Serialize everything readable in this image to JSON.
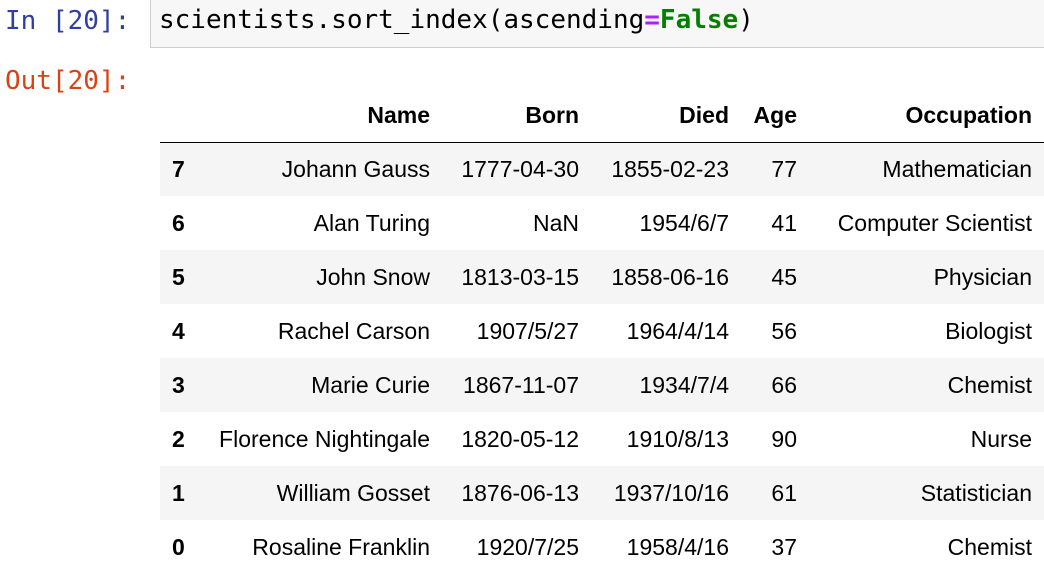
{
  "cell_in": {
    "prompt": "In [20]:",
    "code_object": "scientists.sort_index(ascending",
    "code_op": "=",
    "code_kw": "False",
    "code_close": ")"
  },
  "cell_out": {
    "prompt": "Out[20]:"
  },
  "table": {
    "columns": [
      "",
      "Name",
      "Born",
      "Died",
      "Age",
      "Occupation"
    ],
    "rows": [
      {
        "index": "7",
        "name": "Johann Gauss",
        "born": "1777-04-30",
        "died": "1855-02-23",
        "age": "77",
        "occupation": "Mathematician"
      },
      {
        "index": "6",
        "name": "Alan Turing",
        "born": "NaN",
        "died": "1954/6/7",
        "age": "41",
        "occupation": "Computer Scientist"
      },
      {
        "index": "5",
        "name": "John Snow",
        "born": "1813-03-15",
        "died": "1858-06-16",
        "age": "45",
        "occupation": "Physician"
      },
      {
        "index": "4",
        "name": "Rachel Carson",
        "born": "1907/5/27",
        "died": "1964/4/14",
        "age": "56",
        "occupation": "Biologist"
      },
      {
        "index": "3",
        "name": "Marie Curie",
        "born": "1867-11-07",
        "died": "1934/7/4",
        "age": "66",
        "occupation": "Chemist"
      },
      {
        "index": "2",
        "name": "Florence Nightingale",
        "born": "1820-05-12",
        "died": "1910/8/13",
        "age": "90",
        "occupation": "Nurse"
      },
      {
        "index": "1",
        "name": "William Gosset",
        "born": "1876-06-13",
        "died": "1937/10/16",
        "age": "61",
        "occupation": "Statistician"
      },
      {
        "index": "0",
        "name": "Rosaline Franklin",
        "born": "1920/7/25",
        "died": "1958/4/16",
        "age": "37",
        "occupation": "Chemist"
      }
    ]
  },
  "colors": {
    "in_prompt": "#303f9f",
    "out_prompt": "#d84315",
    "input_bg": "#f7f7f7",
    "operator": "#aa22ff",
    "keyword": "#008000",
    "row_stripe": "#f5f5f5"
  }
}
